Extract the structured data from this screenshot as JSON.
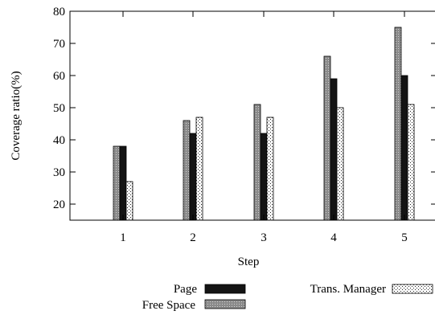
{
  "chart_data": {
    "type": "bar",
    "xlabel": "Step",
    "ylabel": "Coverage ratio(%)",
    "ylim": [
      15,
      80
    ],
    "yticks": [
      20,
      30,
      40,
      50,
      60,
      70,
      80
    ],
    "categories": [
      "1",
      "2",
      "3",
      "4",
      "5"
    ],
    "grid": false,
    "legend_position": "bottom",
    "series": [
      {
        "name": "Free Space",
        "values": [
          38,
          46,
          51,
          66,
          75
        ],
        "fill": "#909090",
        "pattern": "dotted-gray"
      },
      {
        "name": "Page",
        "values": [
          38,
          42,
          42,
          59,
          60
        ],
        "fill": "#1a1a1a",
        "pattern": "solid-black"
      },
      {
        "name": "Trans. Manager",
        "values": [
          27,
          47,
          47,
          50,
          51
        ],
        "fill": "#ffffff",
        "pattern": "sparse-dots"
      }
    ],
    "legend": [
      {
        "label": "Page",
        "series": 1
      },
      {
        "label": "Free Space",
        "series": 0
      },
      {
        "label": "Trans. Manager",
        "series": 2
      }
    ]
  }
}
